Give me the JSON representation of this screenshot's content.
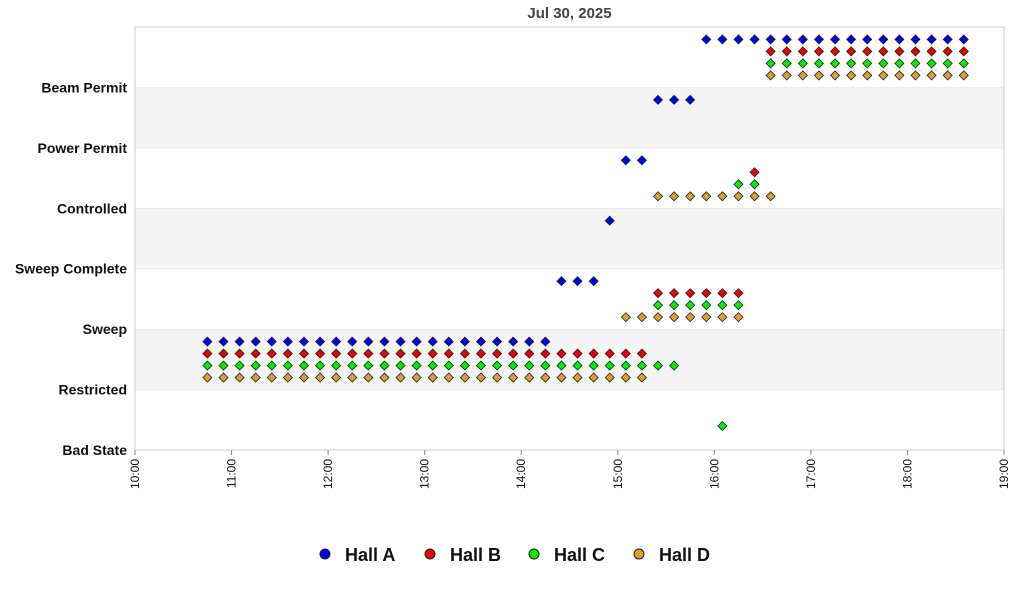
{
  "chart_data": {
    "type": "scatter",
    "title": "Jul 30, 2025",
    "xlabel": "",
    "ylabel": "",
    "x_ticks": [
      "10:00",
      "11:00",
      "12:00",
      "13:00",
      "14:00",
      "15:00",
      "16:00",
      "17:00",
      "18:00",
      "19:00"
    ],
    "xlim": [
      "10:00",
      "19:00"
    ],
    "y_categories": [
      "Bad State",
      "Restricted",
      "Sweep",
      "Sweep Complete",
      "Controlled",
      "Power Permit",
      "Beam Permit"
    ],
    "legend_position": "bottom",
    "grid": "horizontal-bands",
    "series": [
      {
        "name": "Hall A",
        "color": "#0000ee",
        "points": [
          {
            "state": "Restricted",
            "from": "10:45",
            "to": "14:15",
            "step_min": 10
          },
          {
            "state": "Sweep",
            "from": "14:25",
            "to": "14:45",
            "step_min": 10
          },
          {
            "state": "Sweep Complete",
            "from": "14:55",
            "to": "14:55",
            "step_min": 10
          },
          {
            "state": "Controlled",
            "from": "15:05",
            "to": "15:15",
            "step_min": 10
          },
          {
            "state": "Power Permit",
            "from": "15:25",
            "to": "15:45",
            "step_min": 10
          },
          {
            "state": "Beam Permit",
            "from": "15:55",
            "to": "18:35",
            "step_min": 10
          }
        ]
      },
      {
        "name": "Hall B",
        "color": "#ee0000",
        "points": [
          {
            "state": "Restricted",
            "from": "10:45",
            "to": "15:15",
            "step_min": 10
          },
          {
            "state": "Sweep",
            "from": "15:25",
            "to": "16:15",
            "step_min": 10
          },
          {
            "state": "Controlled",
            "from": "16:25",
            "to": "16:25",
            "step_min": 10
          },
          {
            "state": "Beam Permit",
            "from": "16:35",
            "to": "18:35",
            "step_min": 10
          }
        ]
      },
      {
        "name": "Hall C",
        "color": "#00ee00",
        "points": [
          {
            "state": "Restricted",
            "from": "10:45",
            "to": "15:35",
            "step_min": 10
          },
          {
            "state": "Sweep",
            "from": "15:25",
            "to": "16:15",
            "step_min": 10
          },
          {
            "state": "Bad State",
            "from": "16:05",
            "to": "16:05",
            "step_min": 10
          },
          {
            "state": "Controlled",
            "from": "16:15",
            "to": "16:25",
            "step_min": 10
          },
          {
            "state": "Beam Permit",
            "from": "16:35",
            "to": "18:35",
            "step_min": 10
          }
        ]
      },
      {
        "name": "Hall D",
        "color": "#daa030",
        "points": [
          {
            "state": "Restricted",
            "from": "10:45",
            "to": "15:15",
            "step_min": 10
          },
          {
            "state": "Sweep",
            "from": "15:05",
            "to": "16:15",
            "step_min": 10
          },
          {
            "state": "Controlled",
            "from": "15:25",
            "to": "16:35",
            "step_min": 10
          },
          {
            "state": "Beam Permit",
            "from": "16:35",
            "to": "18:35",
            "step_min": 10
          }
        ]
      }
    ]
  }
}
